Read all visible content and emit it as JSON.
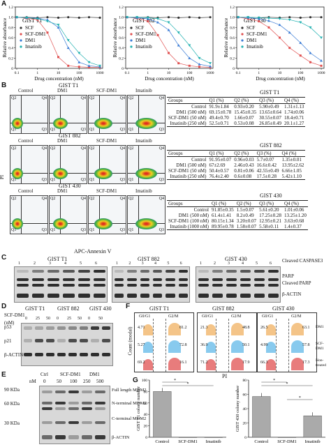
{
  "panels": {
    "A": "A",
    "B": "B",
    "C": "C",
    "D": "D",
    "E": "E",
    "F": "F",
    "G": "G"
  },
  "panel_a": {
    "y_axis_label": "Relative absorbance",
    "x_axis_label": "Drug concentration (nM)",
    "x_ticks": [
      "0.1",
      "1",
      "10",
      "100",
      "1000"
    ],
    "y_ticks": [
      "0",
      "0.2",
      "0.4",
      "0.6",
      "0.8",
      "1.0",
      "1.2"
    ],
    "legend": [
      "SCF",
      "SCF-DM1",
      "DM1",
      "Imatinib"
    ],
    "colors": {
      "SCF": "#333333",
      "SCF-DM1": "#e05050",
      "DM1": "#3a7bd5",
      "Imatinib": "#20b0b0"
    },
    "charts": [
      "GIST T1",
      "GIST 882",
      "GIST 430"
    ]
  },
  "chart_data": [
    {
      "type": "line",
      "title": "GIST T1",
      "xlabel": "Drug concentration (nM)",
      "ylabel": "Relative absorbance",
      "x_scale": "log",
      "x": [
        0.1,
        0.3,
        1,
        3,
        10,
        30,
        100,
        300,
        1000
      ],
      "ylim": [
        0,
        1.2
      ],
      "series": [
        {
          "name": "SCF",
          "values": [
            1.0,
            1.0,
            0.99,
            1.0,
            0.99,
            1.0,
            0.99,
            1.0,
            0.99
          ]
        },
        {
          "name": "SCF-DM1",
          "values": [
            1.0,
            0.98,
            0.95,
            0.7,
            0.22,
            0.05,
            0.03,
            0.02,
            0.02
          ]
        },
        {
          "name": "DM1",
          "values": [
            1.0,
            0.99,
            0.98,
            0.95,
            0.8,
            0.4,
            0.12,
            0.05,
            0.03
          ]
        },
        {
          "name": "Imatinib",
          "values": [
            1.0,
            0.99,
            0.97,
            0.92,
            0.85,
            0.55,
            0.3,
            0.12,
            0.05
          ]
        }
      ]
    },
    {
      "type": "line",
      "title": "GIST 882",
      "xlabel": "Drug concentration (nM)",
      "ylabel": "Relative absorbance",
      "x_scale": "log",
      "x": [
        0.1,
        0.3,
        1,
        3,
        10,
        30,
        100,
        300,
        1000
      ],
      "ylim": [
        0,
        1.2
      ],
      "series": [
        {
          "name": "SCF",
          "values": [
            1.0,
            1.0,
            1.0,
            0.99,
            1.0,
            0.99,
            1.0,
            0.99,
            1.0
          ]
        },
        {
          "name": "SCF-DM1",
          "values": [
            1.0,
            0.98,
            0.92,
            0.65,
            0.3,
            0.1,
            0.05,
            0.03,
            0.02
          ]
        },
        {
          "name": "DM1",
          "values": [
            1.0,
            0.99,
            0.97,
            0.9,
            0.75,
            0.45,
            0.2,
            0.08,
            0.04
          ]
        },
        {
          "name": "Imatinib",
          "values": [
            1.0,
            1.0,
            0.99,
            0.97,
            0.9,
            0.7,
            0.45,
            0.2,
            0.1
          ]
        }
      ]
    },
    {
      "type": "line",
      "title": "GIST 430",
      "xlabel": "Drug concentration (nM)",
      "ylabel": "Relative absorbance",
      "x_scale": "log",
      "x": [
        0.1,
        0.3,
        1,
        3,
        10,
        30,
        100,
        300,
        1000
      ],
      "ylim": [
        0,
        1.2
      ],
      "series": [
        {
          "name": "SCF",
          "values": [
            1.0,
            1.0,
            0.99,
            1.0,
            0.99,
            1.0,
            0.99,
            1.0,
            1.0
          ]
        },
        {
          "name": "SCF-DM1",
          "values": [
            1.0,
            0.97,
            0.92,
            0.8,
            0.6,
            0.4,
            0.25,
            0.12,
            0.05
          ]
        },
        {
          "name": "DM1",
          "values": [
            1.0,
            0.99,
            0.97,
            0.93,
            0.85,
            0.7,
            0.5,
            0.3,
            0.15
          ]
        },
        {
          "name": "Imatinib",
          "values": [
            1.0,
            1.0,
            0.99,
            0.98,
            0.97,
            0.95,
            0.9,
            0.8,
            0.6
          ]
        }
      ]
    },
    {
      "type": "bar",
      "title": "",
      "xlabel": "",
      "ylabel": "GIST T1 colony number",
      "categories": [
        "Control",
        "SCF-DM1",
        "Imatinib"
      ],
      "values": [
        80,
        0,
        0
      ],
      "ylim": [
        0,
        100
      ],
      "y_ticks": [
        "0",
        "20",
        "40",
        "60",
        "80",
        "100"
      ]
    },
    {
      "type": "bar",
      "title": "",
      "xlabel": "",
      "ylabel": "GIST 430 colony number",
      "categories": [
        "Control",
        "SCF-DM1",
        "Imatinib"
      ],
      "values": [
        57,
        0,
        30
      ],
      "ylim": [
        0,
        80
      ],
      "y_ticks": [
        "0",
        "20",
        "40",
        "60",
        "80"
      ]
    }
  ],
  "panel_b": {
    "y_label": "PI",
    "x_label": "APC-Annexin V",
    "quadrants": [
      "Q1",
      "Q2",
      "Q3",
      "Q4"
    ],
    "rows": [
      {
        "cell": "GIST T1",
        "conditions": [
          "Control",
          "DM1",
          "SCF-DM1",
          "Imatinib"
        ]
      },
      {
        "cell": "GIST 882",
        "conditions": [
          "Control",
          "DM1",
          "SCF-DM1",
          "Imatinib"
        ]
      },
      {
        "cell": "GIST 430",
        "conditions": [
          "Control",
          "DM1",
          "SCF-DM1",
          "Imatinib"
        ]
      }
    ],
    "tables": [
      {
        "title": "GIST T1",
        "header": [
          "Groups",
          "Q1 (%)",
          "Q2 (%)",
          "Q3 (%)",
          "Q4 (%)"
        ],
        "rows": [
          [
            "Control",
            "91.9±1.84",
            "0.93±0.20",
            "5.90±0.49",
            "1.31±1.13"
          ],
          [
            "DM1 (500 nM)",
            "69.15±0.78",
            "15.45±0.35",
            "13.65±0.64",
            "1.74±0.06"
          ],
          [
            "SCF-DM1 (50 nM)",
            "49.4±0.70",
            "1.66±0.07",
            "30.55±0.07",
            "18.4±0.71"
          ],
          [
            "Imatinib (250 nM)",
            "52.5±0.71",
            "0.53±0.08",
            "26.85±0.49",
            "20.1±1.27"
          ]
        ]
      },
      {
        "title": "GIST 882",
        "header": [
          "Groups",
          "Q1 (%)",
          "Q2 (%)",
          "Q3 (%)",
          "Q4 (%)"
        ],
        "rows": [
          [
            "Control",
            "91.95±0.07",
            "0.96±0.03",
            "5.7±0.07",
            "1.35±0.01"
          ],
          [
            "DM1 (500 nM)",
            "67±2.69",
            "2.46±0.43",
            "16.6±0.42",
            "13.95±2.62"
          ],
          [
            "SCF-DM1 (50 nM)",
            "50.4±0.57",
            "0.81±0.06",
            "42.55±0.49",
            "6.66±1.05"
          ],
          [
            "Imatinib (250 nM)",
            "76.4±2.40",
            "0.6±0.08",
            "17.5±0.28",
            "5.42±1.10"
          ]
        ]
      },
      {
        "title": "GIST 430",
        "header": [
          "Groups",
          "Q1 (%)",
          "Q2 (%)",
          "Q3 (%)",
          "Q4 (%)"
        ],
        "rows": [
          [
            "Control",
            "91.85±0.35",
            "1.5±0.07",
            "5.61±0.20",
            "1.01±0.06"
          ],
          [
            "DM1 (500 nM)",
            "61.4±1.41",
            "8.2±0.49",
            "17.25±0.28",
            "13.25±1.20"
          ],
          [
            "SCF-DM1 (100 nM)",
            "80.15±1.34",
            "3.20±0.07",
            "12.95±0.21",
            "3.63±0.68"
          ],
          [
            "Imatinib (1000 nM)",
            "89.95±0.78",
            "1.58±0.07",
            "5.58±0.11",
            "1.4±0.37"
          ]
        ]
      }
    ]
  },
  "panel_c": {
    "titles": [
      "GIST T1",
      "GIST 882",
      "GIST 430"
    ],
    "lanes": [
      "1",
      "2",
      "3",
      "4",
      "5",
      "6"
    ],
    "labels": [
      "Cleaved CASPASE3",
      "PARP",
      "Cleaved PARP",
      "β-ACTIN"
    ]
  },
  "panel_d": {
    "agent": "SCF-DM1",
    "unit": "(nM)",
    "cells": [
      "GIST T1",
      "GIST 882",
      "GIST 430"
    ],
    "doses": [
      "0",
      "25",
      "50",
      "0",
      "25",
      "50",
      "0",
      "50"
    ],
    "labels": [
      "p53",
      "p21",
      "β-ACTIN"
    ]
  },
  "panel_e": {
    "groups": [
      "Ctrl",
      "SCF-DM1",
      "DM1"
    ],
    "unit": "nM",
    "doses": [
      "0",
      "50",
      "100",
      "250",
      "500"
    ],
    "markers": [
      "90 KDa",
      "60 KDa",
      "30 KDa"
    ],
    "labels": [
      "Full length MDM2",
      "N-terminal MDM2",
      "C-terminal MDM2",
      "β-ACTIN"
    ]
  },
  "panel_f": {
    "titles": [
      "GIST T1",
      "GIST 882",
      "GIST 430"
    ],
    "y_label": "Count (modal)",
    "x_label": "PI",
    "phase_labels": {
      "g0g1": "G0/G1",
      "g2m": "G2/M"
    },
    "conditions": [
      "DM1",
      "SCF-DM1",
      "Non-treated"
    ],
    "g0g1": [
      [
        "4.71",
        "5.27",
        "69.2"
      ],
      [
        "21.3",
        "36.9",
        "71.2"
      ],
      [
        "26.5",
        "4.99",
        "66.3"
      ]
    ],
    "g2m": [
      [
        "81.2",
        "72.8",
        "16.1"
      ],
      [
        "48.8",
        "50.1",
        "17.9"
      ],
      [
        "63.1",
        "57.8",
        "17.3"
      ]
    ],
    "colors": {
      "DM1": "#f0b060",
      "SCF-DM1": "#60b8e8",
      "Non-treated": "#e05050"
    }
  },
  "panel_g": {
    "star": "*"
  }
}
